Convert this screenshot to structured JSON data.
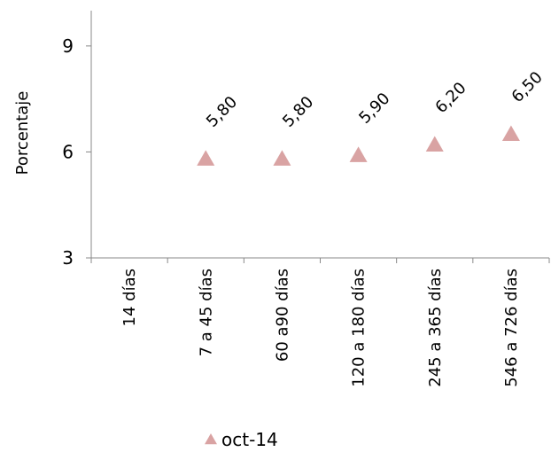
{
  "chart_data": {
    "type": "scatter",
    "marker": "triangle",
    "categories": [
      "14 días",
      "7 a 45 días",
      "60 a90 días",
      "120 a 180 días",
      "245 a 365 días",
      "546 a 726 días"
    ],
    "series": [
      {
        "name": "oct-14",
        "values": [
          null,
          5.8,
          5.8,
          5.9,
          6.2,
          6.5
        ],
        "labels": [
          "",
          "5,80",
          "5,80",
          "5,90",
          "6,20",
          "6,50"
        ],
        "color": "#d9a3a3"
      }
    ],
    "xlabel": "",
    "ylabel": "Porcentaje",
    "ylim": [
      3,
      10
    ],
    "yticks": [
      3,
      6,
      9
    ],
    "grid": false,
    "legend": "bottom"
  }
}
